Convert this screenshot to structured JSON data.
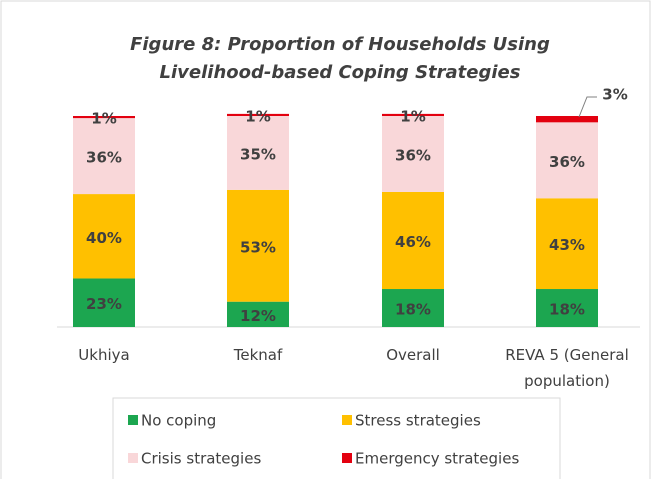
{
  "chart_data": {
    "type": "stacked_bar",
    "title": [
      "Figure 8: Proportion of Households Using",
      "Livelihood-based Coping Strategies"
    ],
    "categories": [
      "Ukhiya",
      "Teknaf",
      "Overall",
      "REVA 5 (General population)"
    ],
    "series": [
      {
        "name": "No coping",
        "color": "#1ca650",
        "values": [
          23,
          12,
          18,
          18
        ],
        "value_labels": [
          "23%",
          "12%",
          "18%",
          "18%"
        ]
      },
      {
        "name": "Stress strategies",
        "color": "#ffc000",
        "values": [
          40,
          53,
          46,
          43
        ],
        "value_labels": [
          "40%",
          "53%",
          "46%",
          "43%"
        ]
      },
      {
        "name": "Crisis strategies",
        "color": "#f9d7d9",
        "values": [
          36,
          35,
          36,
          36
        ],
        "value_labels": [
          "36%",
          "35%",
          "36%",
          "36%"
        ]
      },
      {
        "name": "Emergency strategies",
        "color": "#e3000f",
        "values": [
          1,
          1,
          1,
          3
        ],
        "value_labels": [
          "1%",
          "1%",
          "1%",
          "3%"
        ]
      }
    ],
    "legend": "bottom"
  }
}
